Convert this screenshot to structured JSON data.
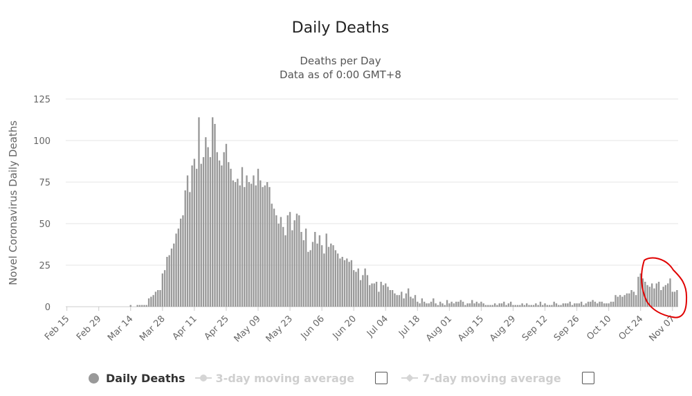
{
  "chart_data": {
    "type": "bar",
    "title": "Daily Deaths",
    "subtitle": [
      "Deaths per Day",
      "Data as of 0:00 GMT+8"
    ],
    "ylabel": "Novel Coronavirus Daily Deaths",
    "xlabel": "",
    "ylim": [
      0,
      125
    ],
    "yticks": [
      0,
      25,
      50,
      75,
      100,
      125
    ],
    "x_tick_labels": [
      "Feb 15",
      "Feb 29",
      "Mar 14",
      "Mar 28",
      "Apr 11",
      "Apr 25",
      "May 09",
      "May 23",
      "Jun 06",
      "Jun 20",
      "Jul 04",
      "Jul 18",
      "Aug 01",
      "Aug 15",
      "Aug 29",
      "Sep 12",
      "Sep 26",
      "Oct 10",
      "Oct 24",
      "Nov 07"
    ],
    "start_date": "Feb 15",
    "grid": true,
    "bar_color": "#999999",
    "series": [
      {
        "name": "Daily Deaths",
        "values": [
          0,
          0,
          0,
          0,
          0,
          0,
          0,
          0,
          0,
          0,
          0,
          0,
          0,
          0,
          0,
          0,
          0,
          0,
          0,
          0,
          0,
          0,
          0,
          0,
          0,
          0,
          0,
          0,
          1,
          0,
          0,
          1,
          1,
          1,
          1,
          1,
          5,
          6,
          7,
          9,
          10,
          10,
          20,
          22,
          30,
          31,
          35,
          38,
          44,
          47,
          53,
          55,
          70,
          79,
          69,
          85,
          89,
          83,
          114,
          86,
          90,
          102,
          96,
          90,
          114,
          110,
          93,
          88,
          85,
          93,
          98,
          87,
          83,
          76,
          75,
          77,
          73,
          84,
          72,
          79,
          75,
          74,
          79,
          73,
          83,
          76,
          72,
          73,
          75,
          72,
          62,
          59,
          55,
          50,
          54,
          48,
          43,
          55,
          57,
          46,
          52,
          56,
          55,
          45,
          40,
          47,
          33,
          34,
          39,
          45,
          38,
          43,
          37,
          32,
          44,
          36,
          38,
          37,
          34,
          32,
          29,
          30,
          28,
          29,
          27,
          28,
          22,
          21,
          23,
          16,
          19,
          23,
          19,
          13,
          14,
          14,
          15,
          9,
          15,
          13,
          14,
          12,
          10,
          10,
          8,
          7,
          7,
          9,
          5,
          8,
          11,
          6,
          5,
          7,
          3,
          2,
          5,
          3,
          2,
          2,
          3,
          5,
          2,
          1,
          3,
          2,
          1,
          4,
          2,
          3,
          2,
          3,
          3,
          4,
          3,
          1,
          2,
          2,
          4,
          2,
          3,
          2,
          3,
          2,
          1,
          1,
          1,
          1,
          2,
          1,
          2,
          2,
          3,
          1,
          2,
          3,
          1,
          1,
          1,
          1,
          2,
          1,
          2,
          1,
          1,
          1,
          2,
          1,
          3,
          1,
          2,
          1,
          1,
          1,
          3,
          2,
          1,
          1,
          2,
          2,
          2,
          3,
          1,
          2,
          2,
          2,
          3,
          1,
          2,
          3,
          3,
          4,
          3,
          2,
          3,
          3,
          2,
          2,
          2,
          3,
          3,
          7,
          6,
          7,
          6,
          7,
          8,
          8,
          10,
          9,
          7,
          18,
          20,
          17,
          15,
          13,
          12,
          14,
          11,
          14,
          15,
          10,
          12,
          13,
          14,
          17,
          9,
          9,
          10
        ]
      }
    ],
    "legend": [
      {
        "label": "Daily Deaths",
        "enabled": true,
        "color": "#999999"
      },
      {
        "label": "3-day moving average",
        "enabled": false
      },
      {
        "label": "7-day moving average",
        "enabled": false
      }
    ],
    "annotation": {
      "shape": "freehand circle",
      "color": "#e00000",
      "target": "Nov 07"
    }
  }
}
